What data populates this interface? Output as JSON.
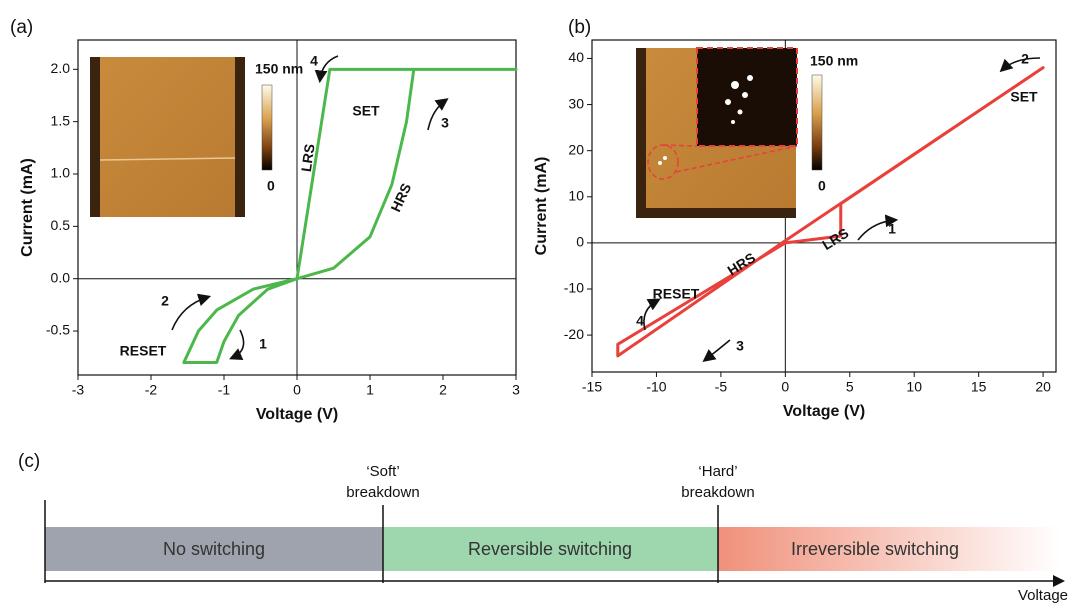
{
  "chart_data": [
    {
      "type": "line",
      "panel_label": "(a)",
      "xlabel": "Voltage (V)",
      "ylabel": "Current (mA)",
      "series": [
        {
          "color": "#4cb84c",
          "x": [
            0,
            0.5,
            1.0,
            1.3,
            1.5,
            1.6,
            3.0,
            0.45,
            0,
            -0.4,
            -0.8,
            -1.0,
            -1.1,
            -1.55,
            -1.35,
            -1.1,
            -0.6,
            0
          ],
          "values": [
            0,
            0.1,
            0.4,
            0.9,
            1.5,
            2.0,
            2.0,
            2.0,
            0,
            -0.1,
            -0.35,
            -0.6,
            -0.8,
            -0.8,
            -0.5,
            -0.3,
            -0.1,
            0
          ]
        }
      ],
      "xlim": [
        -3,
        3
      ],
      "ylim": [
        -0.92,
        2.28
      ],
      "xticks": [
        -3,
        -2,
        -1,
        0,
        1,
        2,
        3
      ],
      "yticks": [
        {
          "value": -0.5,
          "label": "-0.5"
        },
        {
          "value": 0,
          "label": "0.0"
        },
        {
          "value": 0.5,
          "label": "0.5"
        },
        {
          "value": 1,
          "label": "1.0"
        },
        {
          "value": 1.5,
          "label": "1.5"
        },
        {
          "value": 2,
          "label": "2.0"
        }
      ],
      "annotations": [
        "4",
        "SET",
        "3",
        "LRS",
        "HRS",
        "RESET",
        "2",
        "1"
      ],
      "inset": {
        "scale_max": "150 nm",
        "scale_min": "0"
      }
    },
    {
      "type": "line",
      "panel_label": "(b)",
      "xlabel": "Voltage (V)",
      "ylabel": "Current (mA)",
      "series": [
        {
          "color": "#e8403a",
          "x": [
            0,
            4.3,
            4.3,
            20,
            0,
            -13,
            -13,
            0
          ],
          "values": [
            0,
            1.5,
            8.5,
            38,
            0.5,
            -24.5,
            -22,
            0
          ]
        }
      ],
      "xlim": [
        -15,
        21
      ],
      "ylim": [
        -28,
        44
      ],
      "xticks": [
        -15,
        -10,
        -5,
        0,
        5,
        10,
        15,
        20
      ],
      "yticks": [
        -20,
        -10,
        0,
        10,
        20,
        30,
        40
      ],
      "annotations": [
        "2",
        "SET",
        "LRS",
        "1",
        "HRS",
        "RESET",
        "4",
        "3"
      ],
      "inset": {
        "scale_max": "150 nm",
        "scale_min": "0"
      }
    }
  ],
  "diagram": {
    "panel_label": "(c)",
    "segments": [
      "No switching",
      "Reversible switching",
      "Irreversible switching"
    ],
    "markers": [
      [
        "‘Soft’",
        "breakdown"
      ],
      [
        "‘Hard’",
        "breakdown"
      ]
    ],
    "axis_label": "Voltage"
  }
}
